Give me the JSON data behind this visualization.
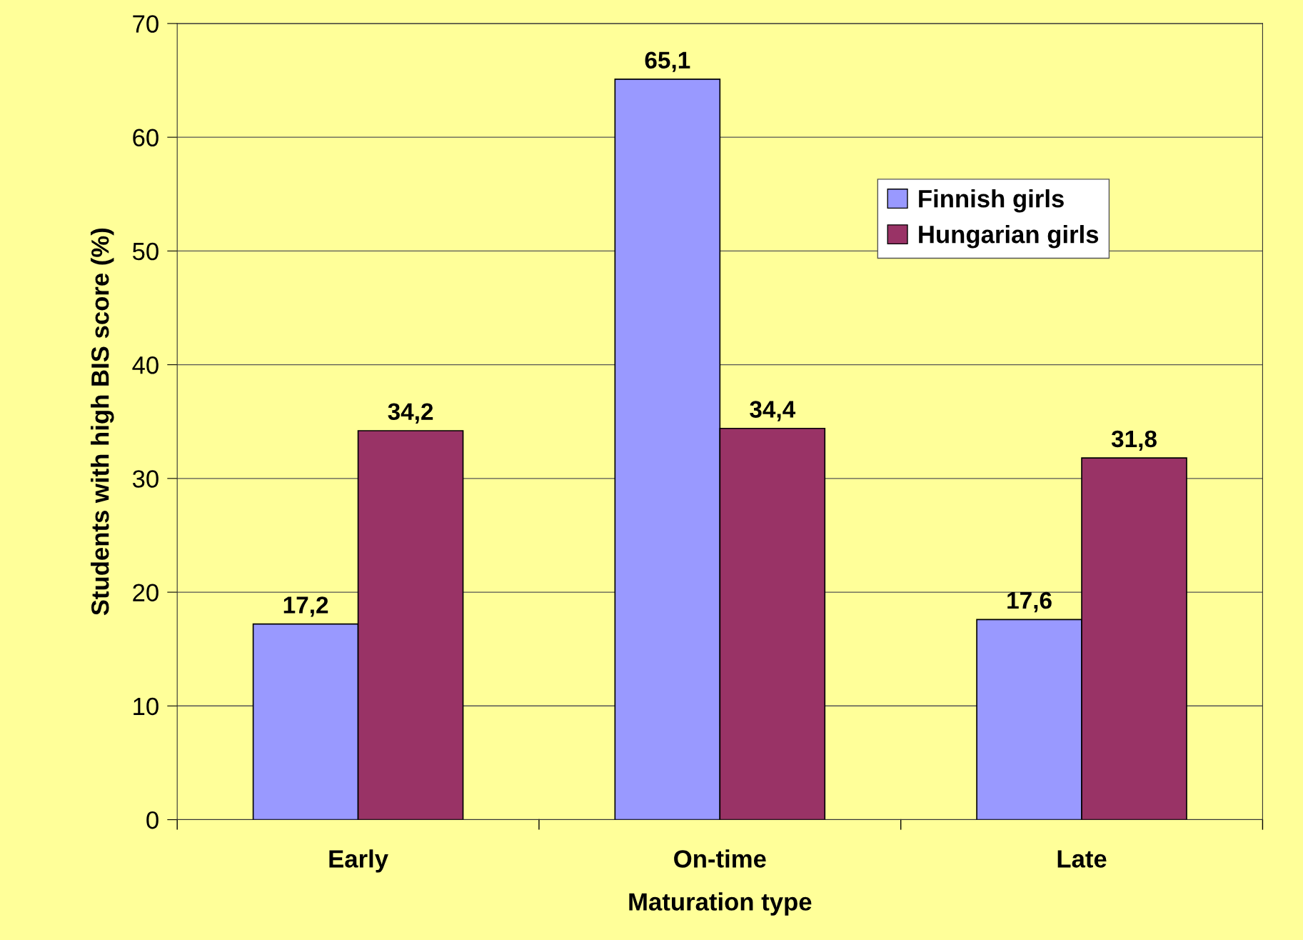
{
  "chart_data": {
    "type": "bar",
    "xlabel": "Maturation type",
    "ylabel": "Students with high BIS score (%)",
    "categories": [
      "Early",
      "On-time",
      "Late"
    ],
    "series": [
      {
        "name": "Finnish girls",
        "color": "#9999ff",
        "values": [
          17.2,
          65.1,
          17.6
        ],
        "value_labels": [
          "17,2",
          "65,1",
          "17,6"
        ]
      },
      {
        "name": "Hungarian girls",
        "color": "#993366",
        "values": [
          34.2,
          34.4,
          31.8
        ],
        "value_labels": [
          "34,2",
          "34,4",
          "31,8"
        ]
      }
    ],
    "ylim": [
      0,
      70
    ],
    "yticks": [
      0,
      10,
      20,
      30,
      40,
      50,
      60,
      70
    ],
    "grid": "y",
    "legend": "top right"
  }
}
